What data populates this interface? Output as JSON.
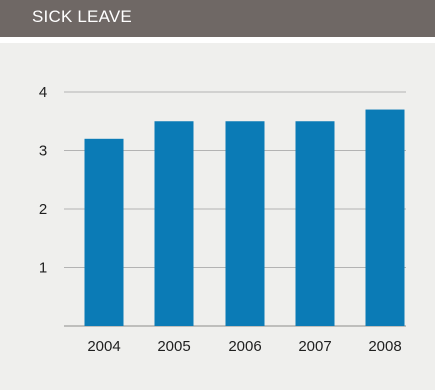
{
  "header": {
    "title": "SICK LEAVE"
  },
  "colors": {
    "header_bg": "#6f6865",
    "panel_bg": "#efefed",
    "bar": "#0b7bb6",
    "grid": "#b3b3b3"
  },
  "chart_data": {
    "type": "bar",
    "title": "SICK LEAVE",
    "categories": [
      "2004",
      "2005",
      "2006",
      "2007",
      "2008"
    ],
    "values": [
      3.2,
      3.5,
      3.5,
      3.5,
      3.7
    ],
    "ylim": [
      0,
      4
    ],
    "yticks": [
      "1",
      "2",
      "3",
      "4"
    ],
    "grid": true,
    "xlabel": "",
    "ylabel": ""
  }
}
